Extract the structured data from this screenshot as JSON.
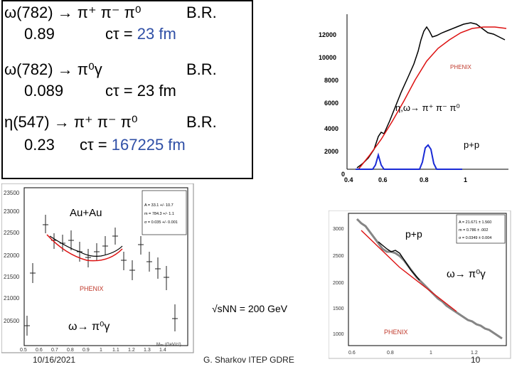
{
  "decays": [
    {
      "reaction": "ω(782) → π⁺ π⁻ π⁰",
      "br_label": "B.R.",
      "br_value": "0.89",
      "ctau_prefix": "cτ = ",
      "ctau_value": "23 fm"
    },
    {
      "reaction": "ω(782) → π⁰γ",
      "br_label": "B.R.",
      "br_value": "0.089",
      "ctau_prefix": "cτ = ",
      "ctau_value": "23 fm"
    },
    {
      "reaction": "η(547) → π⁺ π⁻ π⁰",
      "br_label": "B.R.",
      "br_value": "0.23",
      "ctau_prefix": "cτ = ",
      "ctau_value": "167225 fm"
    }
  ],
  "plot_top_right": {
    "y_ticks": [
      "12000",
      "10000",
      "8000",
      "6000",
      "4000",
      "2000",
      "0"
    ],
    "x_ticks": [
      "0.4",
      "0.6",
      "0.8",
      "1"
    ],
    "phenix": "PHENIX",
    "channel": "η,ω→ π⁺ π⁻ π⁰",
    "system": "p+p"
  },
  "plot_bottom_left": {
    "y_ticks": [
      "23500",
      "23000",
      "22500",
      "22000",
      "21500",
      "21000",
      "20500"
    ],
    "x_ticks": [
      "0.5",
      "0.6",
      "0.7",
      "0.8",
      "0.9",
      "1",
      "1.1",
      "1.2",
      "1.3",
      "1.4"
    ],
    "system": "Au+Au",
    "phenix": "PHENIX",
    "channel": "ω→ π⁰γ",
    "fit_lines": [
      "A = 33.1 +/- 10.7",
      "m = 784.3 +/- 1.1",
      "σ = 0.035 +/- 0.001"
    ],
    "x_title": "Mᵢₙᵥ (GeV/c²)"
  },
  "plot_bottom_right": {
    "y_ticks": [
      "3000",
      "2500",
      "2000",
      "1500",
      "1000"
    ],
    "x_ticks": [
      "0.6",
      "0.8",
      "1",
      "1.2"
    ],
    "system": "p+p",
    "channel": "ω→ π⁰γ",
    "phenix": "PHENIX",
    "fit_lines": [
      "A = 21.671 ± 1.560",
      "m = 0.786 ± .002",
      "σ = 0.0349 ± 0.004"
    ]
  },
  "energy_label": "√sNN = 200 GeV",
  "footer": {
    "date": "10/16/2021",
    "author": "G. Sharkov ITEP GDRE",
    "page": "10"
  }
}
